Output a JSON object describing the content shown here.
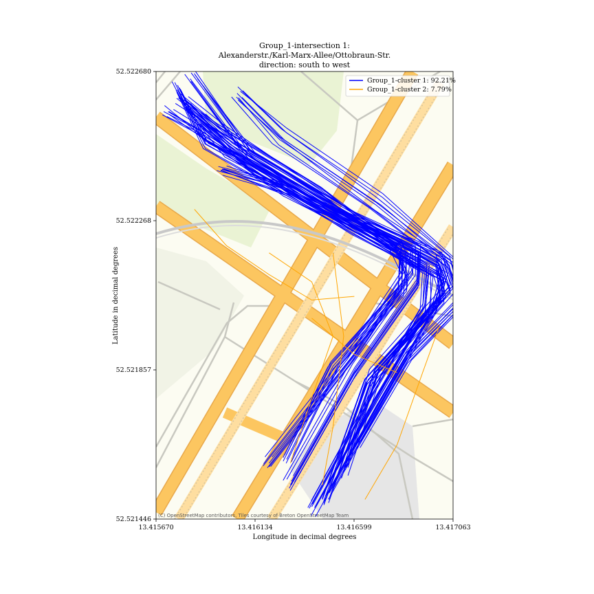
{
  "title": {
    "line1": "Group_1-intersection 1:",
    "line2": "Alexanderstr./Karl-Marx-Allee/Ottobraun-Str.",
    "line3": "direction: south to west"
  },
  "axes": {
    "xlabel": "Longitude in decimal degrees",
    "ylabel": "Latitude in decimal degrees",
    "xlim": [
      13.41567,
      13.417063
    ],
    "ylim": [
      52.521446,
      52.52268
    ],
    "xticks": [
      "13.415670",
      "13.416134",
      "13.416599",
      "13.417063"
    ],
    "yticks": [
      "52.522680",
      "52.522268",
      "52.521857",
      "52.521446"
    ]
  },
  "legend": {
    "placement": "top-right",
    "items": [
      {
        "label": "Group_1-cluster 1: 92.21%",
        "color": "#0000ff"
      },
      {
        "label": "Group_1-cluster 2: 7.79%",
        "color": "#ffa500"
      }
    ]
  },
  "attribution": "(C) OpenStreetMap contributors, Tiles courtesy of Breton OpenStreetMap Team",
  "map_colors": {
    "background": "#fcfcf2",
    "major_road": "#fcc660",
    "major_road_casing": "#e8a84a",
    "tram_track": "#fedea0",
    "minor_road": "#c8c8c0",
    "park": "#eaf3d4",
    "plaza": "#e6e6e6",
    "rail": "#c0c0c0"
  },
  "chart_data": {
    "type": "trajectory_map",
    "x_range": [
      13.41567,
      13.417063
    ],
    "y_range": [
      52.521446,
      52.52268
    ],
    "series": [
      {
        "name": "Group_1-cluster 1: 92.21%",
        "color": "#0000ff",
        "share_percent": 92.21,
        "route": "enters from south near (13.41662, 52.52155), runs north-east to the intersection around (13.41690, 52.52210), turns west and exits north-west near (13.41575, 52.52262)",
        "example_paths": [
          [
            [
              13.4163,
              52.52154
            ],
            [
              13.4166,
              52.52185
            ],
            [
              13.4169,
              52.5221
            ],
            [
              13.4169,
              52.52218
            ],
            [
              13.4164,
              52.52232
            ],
            [
              13.4159,
              52.52248
            ],
            [
              13.41577,
              52.52263
            ]
          ],
          [
            [
              13.41645,
              52.5215
            ],
            [
              13.41665,
              52.52183
            ],
            [
              13.417,
              52.52206
            ],
            [
              13.41698,
              52.52215
            ],
            [
              13.4165,
              52.5223
            ],
            [
              13.416,
              52.52247
            ],
            [
              13.4158,
              52.52259
            ]
          ],
          [
            [
              13.4162,
              52.5216
            ],
            [
              13.4166,
              52.5219
            ],
            [
              13.41685,
              52.52212
            ],
            [
              13.4168,
              52.5222
            ],
            [
              13.4163,
              52.52235
            ],
            [
              13.4159,
              52.52251
            ],
            [
              13.41573,
              52.52257
            ]
          ],
          [
            [
              13.41655,
              52.52158
            ],
            [
              13.4167,
              52.52185
            ],
            [
              13.41705,
              52.52208
            ],
            [
              13.417,
              52.52216
            ],
            [
              13.4166,
              52.52228
            ],
            [
              13.4161,
              52.52245
            ],
            [
              13.41583,
              52.52266
            ]
          ],
          [
            [
              13.4164,
              52.52148
            ],
            [
              13.41668,
              52.52178
            ],
            [
              13.41693,
              52.52203
            ],
            [
              13.41694,
              52.52213
            ],
            [
              13.41655,
              52.52227
            ],
            [
              13.41612,
              52.52242
            ],
            [
              13.41587,
              52.52255
            ]
          ],
          [
            [
              13.4166,
              52.52165
            ],
            [
              13.41685,
              52.5219
            ],
            [
              13.4171,
              52.52205
            ],
            [
              13.41705,
              52.52216
            ],
            [
              13.4167,
              52.52232
            ],
            [
              13.41625,
              52.5225
            ],
            [
              13.41605,
              52.52262
            ]
          ],
          [
            [
              13.41628,
              52.5216
            ],
            [
              13.4165,
              52.52186
            ],
            [
              13.41682,
              52.52207
            ],
            [
              13.41683,
              52.52217
            ],
            [
              13.41645,
              52.52234
            ],
            [
              13.41595,
              52.52252
            ],
            [
              13.41579,
              52.5226
            ]
          ],
          [
            [
              13.41648,
              52.52152
            ],
            [
              13.41676,
              52.52181
            ],
            [
              13.41698,
              52.52203
            ],
            [
              13.41702,
              52.52211
            ],
            [
              13.4166,
              52.52224
            ],
            [
              13.4163,
              52.52235
            ],
            [
              13.41598,
              52.52241
            ]
          ]
        ]
      },
      {
        "name": "Group_1-cluster 2: 7.79%",
        "color": "#ffa500",
        "share_percent": 7.79,
        "route": "scattered paths west of the main bundle, from around (13.41585, 52.52230) southward to (13.41665, 52.52155)",
        "example_paths": [
          [
            [
              13.41585,
              52.5223
            ],
            [
              13.416,
              52.5222
            ],
            [
              13.4162,
              52.52212
            ],
            [
              13.4164,
              52.52205
            ],
            [
              13.4166,
              52.52206
            ]
          ],
          [
            [
              13.4162,
              52.52218
            ],
            [
              13.4164,
              52.5221
            ],
            [
              13.4165,
              52.52195
            ],
            [
              13.4164,
              52.52178
            ],
            [
              13.4163,
              52.5216
            ]
          ],
          [
            [
              13.4165,
              52.52218
            ],
            [
              13.41655,
              52.52195
            ],
            [
              13.4165,
              52.5217
            ],
            [
              13.41645,
              52.52154
            ]
          ],
          [
            [
              13.41665,
              52.5215
            ],
            [
              13.4168,
              52.52165
            ],
            [
              13.41692,
              52.52185
            ],
            [
              13.417,
              52.52198
            ]
          ],
          [
            [
              13.4164,
              52.522
            ],
            [
              13.4166,
              52.5219
            ],
            [
              13.4168,
              52.52185
            ]
          ]
        ]
      }
    ]
  }
}
